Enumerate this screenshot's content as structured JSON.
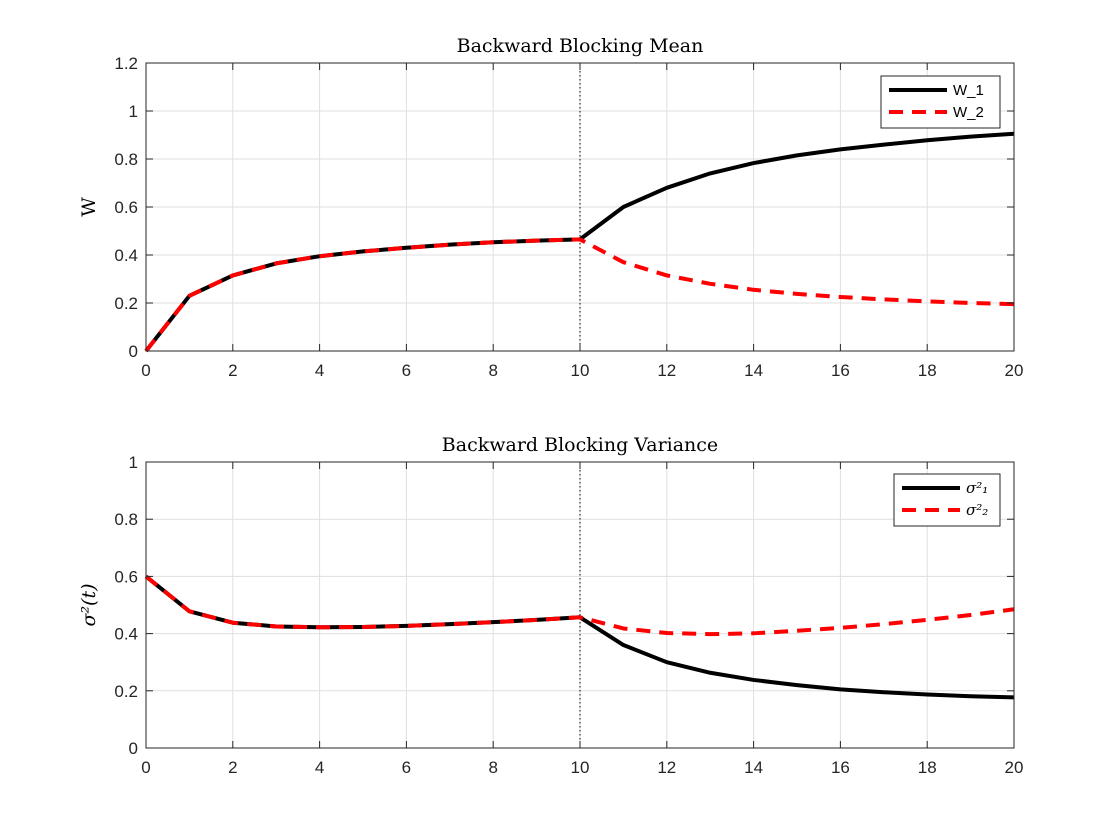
{
  "chart_data": [
    {
      "type": "line",
      "title": "Backward Blocking Mean",
      "xlabel": "",
      "ylabel": "W",
      "xlim": [
        0,
        20
      ],
      "ylim": [
        0,
        1.2
      ],
      "xticks": [
        "0",
        "2",
        "4",
        "6",
        "8",
        "10",
        "12",
        "14",
        "16",
        "18",
        "20"
      ],
      "yticks": [
        "0",
        "0.2",
        "0.4",
        "0.6",
        "0.8",
        "1",
        "1.2"
      ],
      "grid": true,
      "legend": "top-right",
      "vline_x": 10,
      "x": [
        0,
        1,
        2,
        3,
        4,
        5,
        6,
        7,
        8,
        9,
        10,
        11,
        12,
        13,
        14,
        15,
        16,
        17,
        18,
        19,
        20
      ],
      "series": [
        {
          "name": "W_1",
          "color": "#000000",
          "dash": "solid",
          "values": [
            0,
            0.23,
            0.315,
            0.365,
            0.395,
            0.415,
            0.43,
            0.443,
            0.453,
            0.46,
            0.465,
            0.6,
            0.68,
            0.74,
            0.783,
            0.815,
            0.84,
            0.86,
            0.878,
            0.893,
            0.905
          ]
        },
        {
          "name": "W_2",
          "color": "#ff0000",
          "dash": "dashed",
          "values": [
            0,
            0.23,
            0.315,
            0.365,
            0.395,
            0.415,
            0.43,
            0.443,
            0.453,
            0.46,
            0.465,
            0.37,
            0.315,
            0.28,
            0.255,
            0.238,
            0.225,
            0.215,
            0.207,
            0.2,
            0.195
          ]
        }
      ]
    },
    {
      "type": "line",
      "title": "Backward Blocking Variance",
      "xlabel": "",
      "ylabel": "σ²(t)",
      "xlim": [
        0,
        20
      ],
      "ylim": [
        0,
        1
      ],
      "xticks": [
        "0",
        "2",
        "4",
        "6",
        "8",
        "10",
        "12",
        "14",
        "16",
        "18",
        "20"
      ],
      "yticks": [
        "0",
        "0.2",
        "0.4",
        "0.6",
        "0.8",
        "1"
      ],
      "grid": true,
      "legend": "top-right",
      "vline_x": 10,
      "x": [
        0,
        1,
        2,
        3,
        4,
        5,
        6,
        7,
        8,
        9,
        10,
        11,
        12,
        13,
        14,
        15,
        16,
        17,
        18,
        19,
        20
      ],
      "series": [
        {
          "name": "σ²₁",
          "color": "#000000",
          "dash": "solid",
          "values": [
            0.6,
            0.478,
            0.438,
            0.425,
            0.422,
            0.423,
            0.427,
            0.433,
            0.44,
            0.448,
            0.457,
            0.36,
            0.3,
            0.263,
            0.238,
            0.22,
            0.205,
            0.195,
            0.187,
            0.181,
            0.177
          ]
        },
        {
          "name": "σ²₂",
          "color": "#ff0000",
          "dash": "dashed",
          "values": [
            0.6,
            0.478,
            0.438,
            0.425,
            0.422,
            0.423,
            0.427,
            0.433,
            0.44,
            0.448,
            0.457,
            0.418,
            0.402,
            0.398,
            0.401,
            0.41,
            0.42,
            0.433,
            0.448,
            0.465,
            0.485
          ]
        }
      ]
    }
  ]
}
